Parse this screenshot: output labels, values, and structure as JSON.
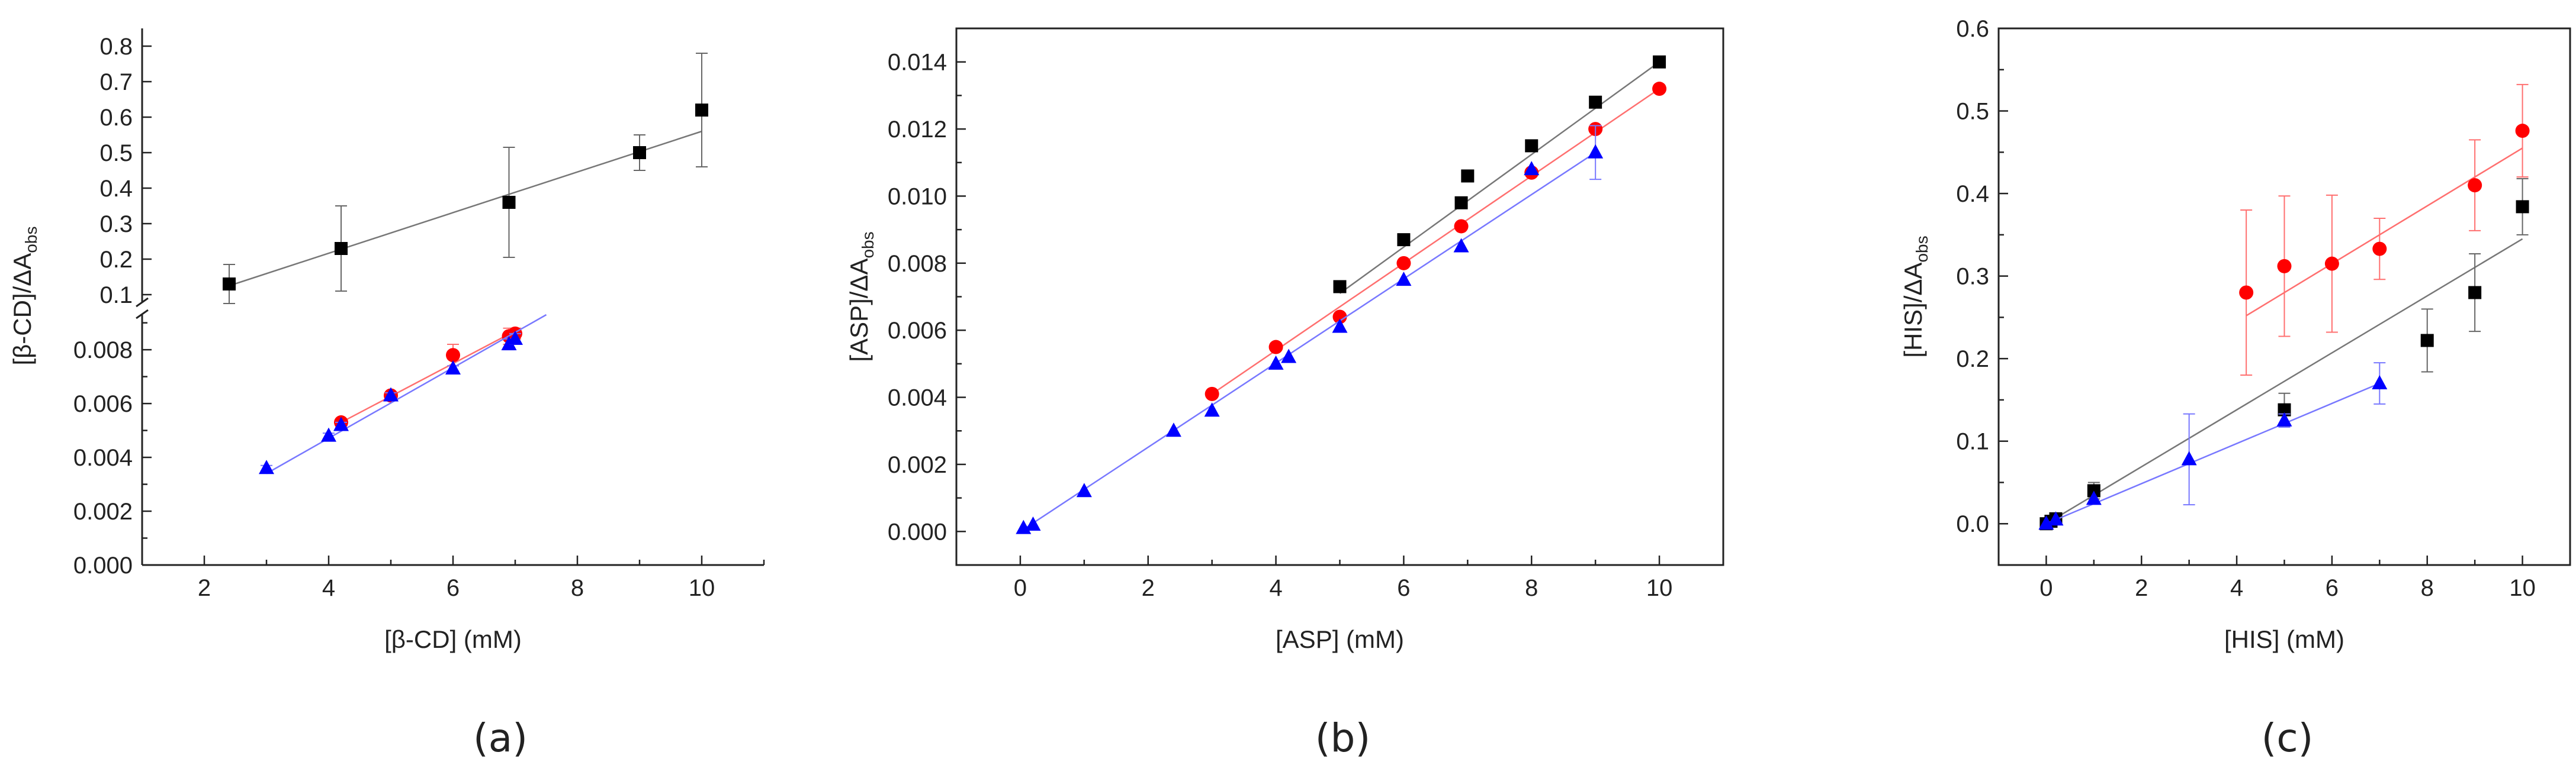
{
  "chart_data": [
    {
      "panel": "(a)",
      "type": "scatter",
      "ylabel_main": "[β-CD]/ΔA",
      "ylabel_sub": "obs",
      "xlabel": "[β-CD] (mM)",
      "xlim": [
        1,
        11
      ],
      "xticks": [
        2,
        4,
        6,
        8,
        10
      ],
      "xtick_labels": [
        "2",
        "4",
        "6",
        "8",
        "10"
      ],
      "y_axis_break": true,
      "ylim_lower": [
        0.0,
        0.0093
      ],
      "yticks_lower": [
        0.0,
        0.002,
        0.004,
        0.006,
        0.008
      ],
      "ytick_labels_lower": [
        "0.000",
        "0.002",
        "0.004",
        "0.006",
        "0.008"
      ],
      "ylim_upper": [
        0.08,
        0.85
      ],
      "yticks_upper": [
        0.1,
        0.2,
        0.3,
        0.4,
        0.5,
        0.6,
        0.7,
        0.8
      ],
      "ytick_labels_upper": [
        "0.1",
        "0.2",
        "0.3",
        "0.4",
        "0.5",
        "0.6",
        "0.7",
        "0.8"
      ],
      "series": [
        {
          "name": "black squares",
          "color": "#000000",
          "marker": "square",
          "segment": "upper",
          "x": [
            2.4,
            4.2,
            6.9,
            9.0,
            10.0
          ],
          "y": [
            0.13,
            0.23,
            0.36,
            0.5,
            0.62
          ],
          "err": [
            0.055,
            0.12,
            0.155,
            0.05,
            0.16
          ],
          "fit": [
            [
              2.4,
              0.125
            ],
            [
              10.0,
              0.56
            ]
          ]
        },
        {
          "name": "red circles",
          "color": "#ff0000",
          "marker": "circle",
          "segment": "lower",
          "x": [
            4.2,
            5.0,
            6.0,
            6.9,
            7.0
          ],
          "y": [
            0.0053,
            0.0063,
            0.0078,
            0.0085,
            0.0086
          ],
          "err": [
            0.0001,
            0.0001,
            0.0004,
            0.0003,
            0.0002
          ],
          "fit": [
            [
              4.2,
              0.0053
            ],
            [
              7.0,
              0.0087
            ]
          ]
        },
        {
          "name": "blue triangles",
          "color": "#0000ff",
          "marker": "triangle",
          "segment": "lower",
          "x": [
            3.0,
            4.0,
            4.2,
            5.0,
            6.0,
            6.9,
            7.0
          ],
          "y": [
            0.0036,
            0.0048,
            0.0052,
            0.0063,
            0.0073,
            0.0082,
            0.0084
          ],
          "err": [
            0.0001,
            0.0001,
            0.0001,
            0.0001,
            0.0001,
            0.0002,
            0.0002
          ],
          "fit": [
            [
              3.0,
              0.0034
            ],
            [
              7.5,
              0.0093
            ]
          ]
        }
      ]
    },
    {
      "panel": "(b)",
      "type": "scatter",
      "ylabel_main": "[ASP]/ΔA",
      "ylabel_sub": "obs",
      "xlabel": "[ASP] (mM)",
      "xlim": [
        -1,
        11
      ],
      "ylim": [
        -0.001,
        0.015
      ],
      "xticks": [
        0,
        2,
        4,
        6,
        8,
        10
      ],
      "xtick_labels": [
        "0",
        "2",
        "4",
        "6",
        "8",
        "10"
      ],
      "yticks": [
        0.0,
        0.002,
        0.004,
        0.006,
        0.008,
        0.01,
        0.012,
        0.014
      ],
      "ytick_labels": [
        "0.000",
        "0.002",
        "0.004",
        "0.006",
        "0.008",
        "0.010",
        "0.012",
        "0.014"
      ],
      "series": [
        {
          "name": "black squares",
          "color": "#000000",
          "marker": "square",
          "x": [
            5.0,
            6.0,
            6.9,
            7.0,
            8.0,
            9.0,
            10.0
          ],
          "y": [
            0.0073,
            0.0087,
            0.0098,
            0.0106,
            0.0115,
            0.0128,
            0.014
          ],
          "err": [
            0,
            0,
            0,
            0,
            0,
            0,
            0
          ],
          "fit": [
            [
              5.0,
              0.0071
            ],
            [
              10.0,
              0.014
            ]
          ]
        },
        {
          "name": "red circles",
          "color": "#ff0000",
          "marker": "circle",
          "x": [
            3.0,
            4.0,
            5.0,
            6.0,
            6.9,
            8.0,
            9.0,
            10.0
          ],
          "y": [
            0.0041,
            0.0055,
            0.0064,
            0.008,
            0.0091,
            0.0107,
            0.012,
            0.0132
          ],
          "err": [
            0,
            0,
            0,
            0,
            0,
            0,
            0,
            0
          ],
          "fit": [
            [
              3.0,
              0.0041
            ],
            [
              10.0,
              0.0132
            ]
          ]
        },
        {
          "name": "blue triangles",
          "color": "#0000ff",
          "marker": "triangle",
          "x": [
            0.05,
            0.2,
            1.0,
            2.4,
            3.0,
            4.0,
            4.2,
            5.0,
            6.0,
            6.9,
            8.0,
            9.0
          ],
          "y": [
            0.0001,
            0.0002,
            0.0012,
            0.003,
            0.0036,
            0.005,
            0.0052,
            0.0061,
            0.0075,
            0.0085,
            0.0108,
            0.0113
          ],
          "err": [
            0,
            0,
            0,
            0,
            0,
            0,
            0,
            0,
            0,
            0,
            0,
            0.0008
          ],
          "fit": [
            [
              0.0,
              0.0
            ],
            [
              9.0,
              0.0113
            ]
          ]
        }
      ]
    },
    {
      "panel": "(c)",
      "type": "scatter",
      "ylabel_main": "[HIS]/ΔA",
      "ylabel_sub": "obs",
      "xlabel": "[HIS] (mM)",
      "xlim": [
        -1,
        11
      ],
      "ylim": [
        -0.05,
        0.6
      ],
      "xticks": [
        0,
        2,
        4,
        6,
        8,
        10
      ],
      "xtick_labels": [
        "0",
        "2",
        "4",
        "6",
        "8",
        "10"
      ],
      "yticks": [
        0.0,
        0.1,
        0.2,
        0.3,
        0.4,
        0.5,
        0.6
      ],
      "ytick_labels": [
        "0.0",
        "0.1",
        "0.2",
        "0.3",
        "0.4",
        "0.5",
        "0.6"
      ],
      "series": [
        {
          "name": "red circles",
          "color": "#ff0000",
          "marker": "circle",
          "x": [
            4.2,
            5.0,
            6.0,
            7.0,
            9.0,
            10.0
          ],
          "y": [
            0.28,
            0.312,
            0.315,
            0.333,
            0.41,
            0.476
          ],
          "err": [
            0.1,
            0.085,
            0.083,
            0.037,
            0.055,
            0.056
          ],
          "fit": [
            [
              4.2,
              0.252
            ],
            [
              10.0,
              0.455
            ]
          ]
        },
        {
          "name": "black squares",
          "color": "#000000",
          "marker": "square",
          "x": [
            0.0,
            0.1,
            0.2,
            1.0,
            5.0,
            8.0,
            9.0,
            10.0
          ],
          "y": [
            0.0,
            0.003,
            0.006,
            0.04,
            0.138,
            0.222,
            0.28,
            0.384
          ],
          "err": [
            0,
            0,
            0,
            0.01,
            0.02,
            0.038,
            0.047,
            0.034
          ],
          "fit": [
            [
              0.0,
              0.0
            ],
            [
              10.0,
              0.345
            ]
          ]
        },
        {
          "name": "blue triangles",
          "color": "#0000ff",
          "marker": "triangle",
          "x": [
            0.0,
            0.2,
            1.0,
            3.0,
            5.0,
            7.0
          ],
          "y": [
            0.0,
            0.005,
            0.03,
            0.078,
            0.125,
            0.17
          ],
          "err": [
            0,
            0,
            0,
            0.055,
            0.008,
            0.025
          ],
          "fit": [
            [
              0.0,
              0.0
            ],
            [
              7.0,
              0.17
            ]
          ]
        }
      ]
    }
  ]
}
